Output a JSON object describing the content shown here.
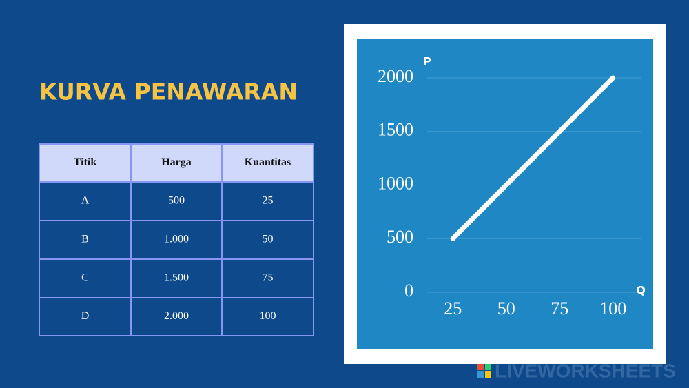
{
  "header": {
    "title": "KURVA PENAWARAN"
  },
  "table": {
    "columns": [
      "Titik",
      "Harga",
      "Kuantitas"
    ],
    "rows": [
      [
        "A",
        "500",
        "25"
      ],
      [
        "B",
        "1.000",
        "50"
      ],
      [
        "C",
        "1.500",
        "75"
      ],
      [
        "D",
        "2.000",
        "100"
      ]
    ]
  },
  "chart_data": {
    "type": "line",
    "x_label": "Q",
    "y_label": "P",
    "x": [
      25,
      50,
      75,
      100
    ],
    "series": [
      {
        "color": "#ffffff",
        "values": [
          500,
          1000,
          1500,
          2000
        ]
      }
    ],
    "xlim": [
      13,
      113
    ],
    "xticks": [
      25,
      50,
      75,
      100
    ],
    "ylim": [
      0,
      2000
    ],
    "yticks": [
      0,
      500,
      1000,
      1500,
      2000
    ],
    "grid": true
  },
  "watermark": "LIVEWORKSHEETS"
}
